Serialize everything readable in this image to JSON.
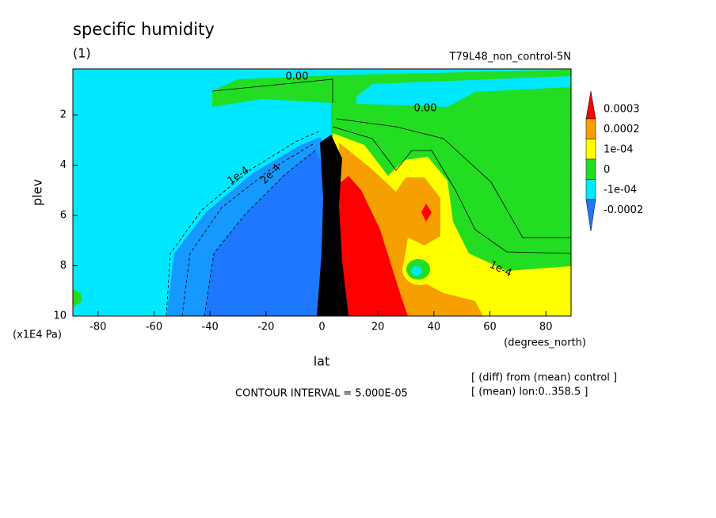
{
  "chart_data": {
    "type": "contour",
    "title": "specific humidity",
    "subtitle": "(1)",
    "run_label": "T79L48_non_control-5N",
    "x_label": "lat",
    "y_label": "plev",
    "x_unit": "(degrees_north)",
    "y_unit": "(x1E4 Pa)",
    "xlim": [
      -89,
      89
    ],
    "ylim": [
      10,
      0.17
    ],
    "xticks": [
      -80,
      -60,
      -40,
      -20,
      0,
      20,
      40,
      60,
      80
    ],
    "yticks": [
      2,
      4,
      6,
      8,
      10
    ],
    "colorbar": {
      "levels": [
        0.0003,
        0.0002,
        {
          "value": 0.0001,
          "label": "1e-04"
        },
        0,
        {
          "value": -0.0001,
          "label": "-1e-04"
        },
        -0.0002
      ],
      "colors": [
        "#ff0000",
        "#f5a000",
        "#ffff00",
        "#22dd22",
        "#00e8ff",
        "#1e78ff"
      ]
    },
    "contour_labels": [
      "0.00",
      "0.00",
      "1e-4",
      "2e-4",
      "1e-4"
    ],
    "contour_interval": "CONTOUR INTERVAL = 5.000E-05",
    "notes": [
      "[ (diff) from (mean) control ]",
      "[ (mean) lon:0..358.5 ]"
    ]
  }
}
